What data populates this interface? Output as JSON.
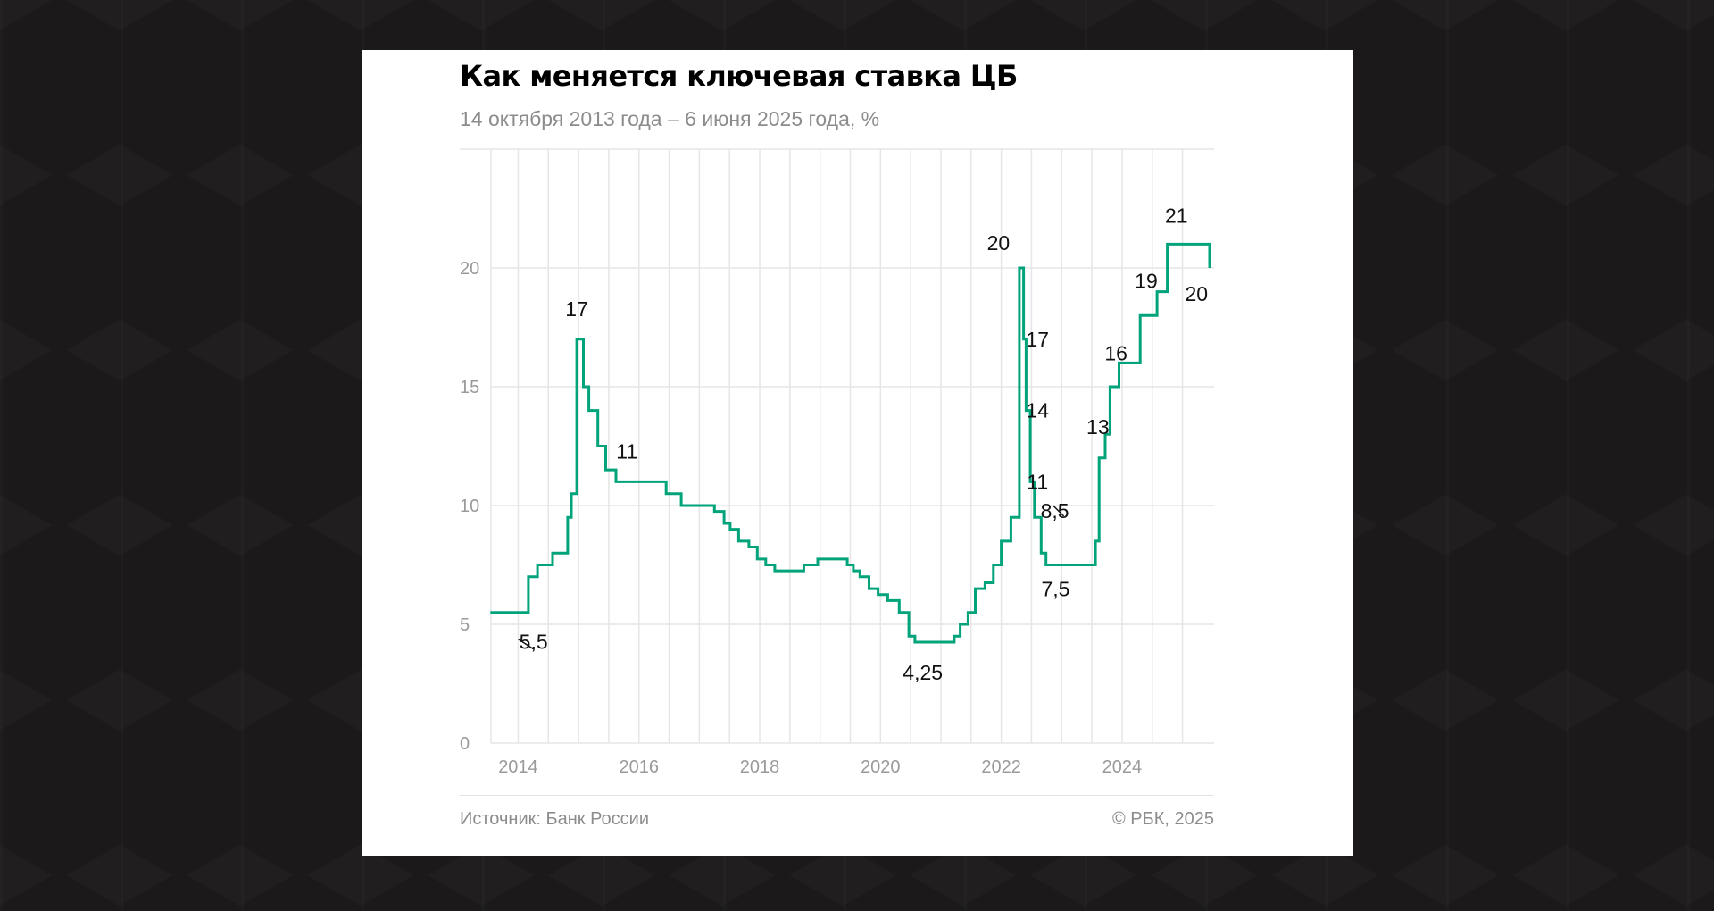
{
  "title": "Как меняется ключевая ставка ЦБ",
  "subtitle": "14 октября 2013 года – 6 июня 2025 года, %",
  "footer": {
    "source": "Источник: Банк России",
    "copyright": "© РБК, 2025"
  },
  "colors": {
    "line": "#00a37a",
    "grid": "#e6e6e6",
    "tick": "#9a9a9a",
    "background": "#1b191a",
    "card": "#ffffff"
  },
  "chart_data": {
    "type": "line",
    "step": true,
    "ylim": [
      0,
      25
    ],
    "xlim": [
      2013.55,
      2025.45
    ],
    "y_ticks": [
      0,
      5,
      10,
      15,
      20
    ],
    "y_tick_labels": [
      "0",
      "5",
      "10",
      "15",
      "20"
    ],
    "x_ticks": [
      2014,
      2016,
      2018,
      2020,
      2022,
      2024
    ],
    "x_tick_labels": [
      "2014",
      "2016",
      "2018",
      "2020",
      "2022",
      "2024"
    ],
    "grid": true,
    "series": [
      {
        "x": [
          2013.78,
          2014.17,
          2014.32,
          2014.57,
          2014.82,
          2014.88,
          2014.97,
          2015.08,
          2015.17,
          2015.32,
          2015.45,
          2015.62,
          2016.45,
          2016.7,
          2017.25,
          2017.41,
          2017.51,
          2017.65,
          2017.82,
          2017.96,
          2018.1,
          2018.25,
          2018.73,
          2018.96,
          2019.45,
          2019.55,
          2019.66,
          2019.81,
          2019.96,
          2020.12,
          2020.31,
          2020.47,
          2020.57,
          2021.22,
          2021.32,
          2021.45,
          2021.57,
          2021.73,
          2021.87,
          2022.0,
          2022.16,
          2022.3,
          2022.37,
          2022.41,
          2022.48,
          2022.55,
          2022.66,
          2022.74,
          2023.56,
          2023.62,
          2023.72,
          2023.8,
          2023.95,
          2024.3,
          2024.58,
          2024.75,
          2024.88,
          2025.45
        ],
        "y": [
          5.5,
          7.0,
          7.5,
          8.0,
          9.5,
          10.5,
          17.0,
          15.0,
          14.0,
          12.5,
          11.5,
          11.0,
          10.5,
          10.0,
          9.75,
          9.25,
          9.0,
          8.5,
          8.25,
          7.75,
          7.5,
          7.25,
          7.5,
          7.75,
          7.5,
          7.25,
          7.0,
          6.5,
          6.25,
          6.0,
          5.5,
          4.5,
          4.25,
          4.5,
          5.0,
          5.5,
          6.5,
          6.75,
          7.5,
          8.5,
          9.5,
          20.0,
          17.0,
          14.0,
          11.0,
          9.5,
          8.0,
          7.5,
          8.5,
          12.0,
          13.0,
          15.0,
          16.0,
          18.0,
          19.0,
          21.0,
          21.0,
          20.0
        ]
      }
    ],
    "annotations": [
      {
        "text": "5,5",
        "x": 2013.9,
        "y": 5.5
      },
      {
        "text": "17",
        "x": 2014.97,
        "y": 17.0
      },
      {
        "text": "11",
        "x": 2015.8,
        "y": 11.0
      },
      {
        "text": "4,25",
        "x": 2020.7,
        "y": 4.25
      },
      {
        "text": "20",
        "x": 2022.1,
        "y": 20.0
      },
      {
        "text": "17",
        "x": 2022.6,
        "y": 17.0
      },
      {
        "text": "14",
        "x": 2022.6,
        "y": 14.0
      },
      {
        "text": "11",
        "x": 2022.6,
        "y": 11.0
      },
      {
        "text": "7,5",
        "x": 2022.9,
        "y": 7.5
      },
      {
        "text": "8,5",
        "x": 2023.3,
        "y": 8.5
      },
      {
        "text": "13",
        "x": 2023.6,
        "y": 13.0
      },
      {
        "text": "16",
        "x": 2023.9,
        "y": 16.0
      },
      {
        "text": "19",
        "x": 2024.4,
        "y": 19.0
      },
      {
        "text": "21",
        "x": 2024.9,
        "y": 21.0
      },
      {
        "text": "20",
        "x": 2025.35,
        "y": 20.0
      }
    ]
  }
}
